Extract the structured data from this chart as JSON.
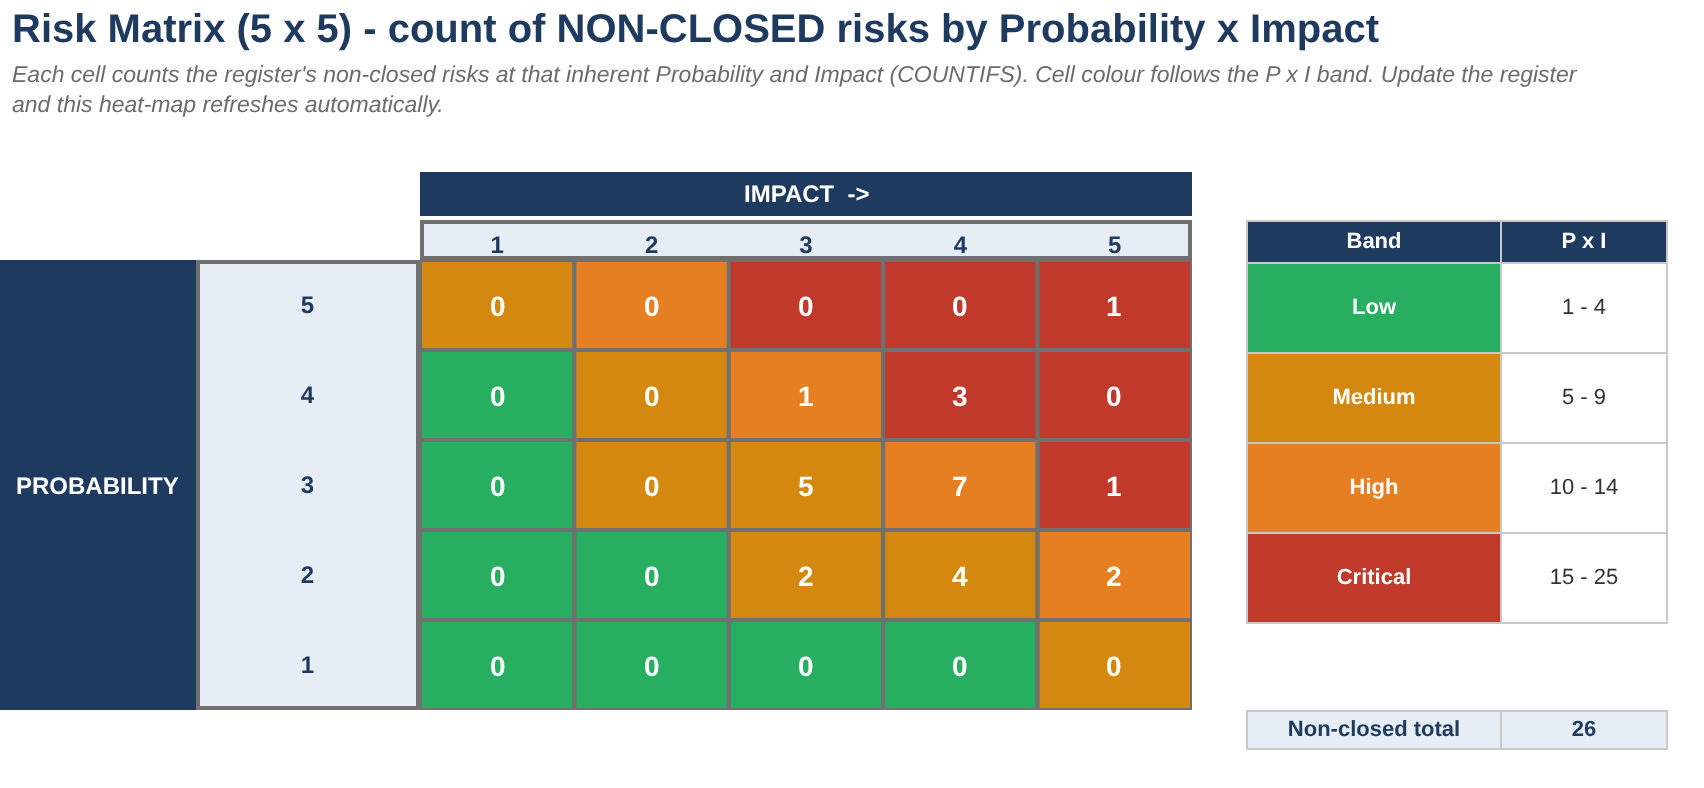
{
  "chart_data": [
    {
      "type": "heatmap",
      "title": "Risk Matrix (5 x 5) - count of NON-CLOSED risks by Probability x Impact",
      "subtitle": "Each cell counts the register's non-closed risks at that inherent Probability and Impact (COUNTIFS). Cell colour follows the P x I band. Update the register and this heat-map refreshes automatically.",
      "xlabel": "IMPACT  ->",
      "ylabel": "PROBABILITY",
      "categories": [
        "1",
        "2",
        "3",
        "4",
        "5"
      ],
      "y_categories": [
        "5",
        "4",
        "3",
        "2",
        "1"
      ],
      "cells": [
        [
          0,
          0,
          0,
          0,
          1
        ],
        [
          0,
          0,
          1,
          3,
          0
        ],
        [
          0,
          0,
          5,
          7,
          1
        ],
        [
          0,
          0,
          2,
          4,
          2
        ],
        [
          0,
          0,
          0,
          0,
          0
        ]
      ],
      "colors": [
        [
          "#d4880f",
          "#e67e22",
          "#c0392b",
          "#c0392b",
          "#c0392b"
        ],
        [
          "#27ae60",
          "#d4880f",
          "#e67e22",
          "#c0392b",
          "#c0392b"
        ],
        [
          "#27ae60",
          "#d4880f",
          "#d4880f",
          "#e67e22",
          "#c0392b"
        ],
        [
          "#27ae60",
          "#27ae60",
          "#d4880f",
          "#d4880f",
          "#e67e22"
        ],
        [
          "#27ae60",
          "#27ae60",
          "#27ae60",
          "#27ae60",
          "#d4880f"
        ]
      ],
      "data_labels": true
    },
    {
      "type": "other",
      "categories": [
        "Low",
        "Medium",
        "High",
        "Critical"
      ],
      "colors": [
        "#27ae60",
        "#d4880f",
        "#e67e22",
        "#c0392b"
      ],
      "value_labels": [
        "1 - 4",
        "5 - 9",
        "10 - 14",
        "15 - 25"
      ],
      "annotations": [
        "Band",
        "P x I",
        "Non-closed total",
        "26"
      ]
    }
  ]
}
